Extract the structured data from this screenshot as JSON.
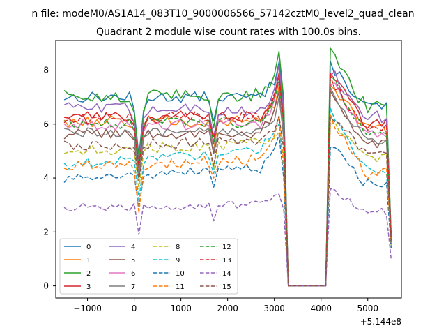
{
  "figure": {
    "suptitle": "n file: modeM0/AS1A14_083T10_9000006566_57142cztM0_level2_quad_clean",
    "title": "Quadrant 2 module wise count rates with 100.0s bins.",
    "x_offset_text": "+5.144e8"
  },
  "chart_data": {
    "type": "line",
    "title": "Quadrant 2 module wise count rates with 100.0s bins.",
    "xlabel": "",
    "ylabel": "",
    "x_offset": 514400000,
    "xlim": [
      -1680,
      5720
    ],
    "ylim": [
      -0.45,
      9.1
    ],
    "xticks": [
      -1000,
      0,
      1000,
      2000,
      3000,
      4000,
      5000
    ],
    "xtick_labels": [
      "−1000",
      "0",
      "1000",
      "2000",
      "3000",
      "4000",
      "5000"
    ],
    "yticks": [
      0,
      2,
      4,
      6,
      8
    ],
    "ytick_labels": [
      "0",
      "2",
      "4",
      "6",
      "8"
    ],
    "grid": false,
    "legend": {
      "placement": "lower-left",
      "columns": 4
    },
    "segments": [
      {
        "x_start": -1500,
        "x_end": 3000,
        "n": 46
      },
      {
        "x_start": 3100,
        "x_end": 3100,
        "n": 1
      },
      {
        "x_start": 3200,
        "x_end": 3200,
        "n": 1
      },
      {
        "x_start": 3300,
        "x_end": 4100,
        "n": 9
      },
      {
        "x_start": 4200,
        "x_end": 5400,
        "n": 13
      },
      {
        "x_start": 5500,
        "x_end": 5500,
        "n": 1
      }
    ],
    "series": [
      {
        "name": "0",
        "color": "#1f77b4",
        "dash": "solid",
        "level": 7.0,
        "dip": 4.8,
        "peak": 8.3,
        "peak2": 8.2,
        "last": 1.8,
        "trend": 0.0,
        "noise": 0.2
      },
      {
        "name": "1",
        "color": "#ff7f0e",
        "dash": "solid",
        "level": 6.1,
        "dip": 4.2,
        "peak": 7.4,
        "peak2": 7.5,
        "last": 1.8,
        "trend": 0.0,
        "noise": 0.22
      },
      {
        "name": "2",
        "color": "#2ca02c",
        "dash": "solid",
        "level": 7.0,
        "dip": 4.7,
        "peak": 8.7,
        "peak2": 8.6,
        "last": 1.9,
        "trend": 0.1,
        "noise": 0.25
      },
      {
        "name": "3",
        "color": "#d62728",
        "dash": "solid",
        "level": 6.3,
        "dip": 4.3,
        "peak": 7.9,
        "peak2": 7.9,
        "last": 1.8,
        "trend": 0.0,
        "noise": 0.2
      },
      {
        "name": "4",
        "color": "#9467bd",
        "dash": "solid",
        "level": 6.6,
        "dip": 4.5,
        "peak": 8.2,
        "peak2": 8.0,
        "last": 1.8,
        "trend": -0.1,
        "noise": 0.22
      },
      {
        "name": "5",
        "color": "#8c564b",
        "dash": "solid",
        "level": 5.6,
        "dip": 4.0,
        "peak": 7.2,
        "peak2": 7.2,
        "last": 1.7,
        "trend": 0.1,
        "noise": 0.2
      },
      {
        "name": "6",
        "color": "#e377c2",
        "dash": "solid",
        "level": 6.0,
        "dip": 4.2,
        "peak": 7.6,
        "peak2": 7.6,
        "last": 1.8,
        "trend": 0.0,
        "noise": 0.22
      },
      {
        "name": "7",
        "color": "#7f7f7f",
        "dash": "solid",
        "level": 5.7,
        "dip": 4.1,
        "peak": 7.0,
        "peak2": 7.3,
        "last": 1.7,
        "trend": 0.0,
        "noise": 0.18
      },
      {
        "name": "8",
        "color": "#bcbd22",
        "dash": "dashed",
        "level": 5.0,
        "dip": 3.6,
        "peak": 5.7,
        "peak2": 6.1,
        "last": 1.5,
        "trend": 0.3,
        "noise": 0.2
      },
      {
        "name": "9",
        "color": "#17becf",
        "dash": "dashed",
        "level": 4.5,
        "dip": 3.2,
        "peak": 6.0,
        "peak2": 6.5,
        "last": 1.5,
        "trend": 0.6,
        "noise": 0.18
      },
      {
        "name": "10",
        "color": "#1f77b4",
        "dash": "dashed",
        "level": 4.0,
        "dip": 2.9,
        "peak": 5.6,
        "peak2": 5.2,
        "last": 1.4,
        "trend": 0.4,
        "noise": 0.18
      },
      {
        "name": "11",
        "color": "#ff7f0e",
        "dash": "dashed",
        "level": 4.4,
        "dip": 2.7,
        "peak": 6.3,
        "peak2": 6.2,
        "last": 1.6,
        "trend": 0.3,
        "noise": 0.22
      },
      {
        "name": "12",
        "color": "#2ca02c",
        "dash": "dashed",
        "level": 6.0,
        "dip": 4.4,
        "peak": 7.6,
        "peak2": 7.8,
        "last": 1.8,
        "trend": 0.1,
        "noise": 0.2
      },
      {
        "name": "13",
        "color": "#d62728",
        "dash": "dashed",
        "level": 6.2,
        "dip": 4.4,
        "peak": 7.7,
        "peak2": 7.6,
        "last": 1.8,
        "trend": 0.1,
        "noise": 0.22
      },
      {
        "name": "14",
        "color": "#9467bd",
        "dash": "dashed",
        "level": 2.9,
        "dip": 1.9,
        "peak": 3.4,
        "peak2": 3.6,
        "last": 1.0,
        "trend": 0.1,
        "noise": 0.15
      },
      {
        "name": "15",
        "color": "#8c564b",
        "dash": "dashed",
        "level": 5.2,
        "dip": 3.9,
        "peak": 6.3,
        "peak2": 6.4,
        "last": 1.6,
        "trend": 0.2,
        "noise": 0.2
      }
    ]
  }
}
